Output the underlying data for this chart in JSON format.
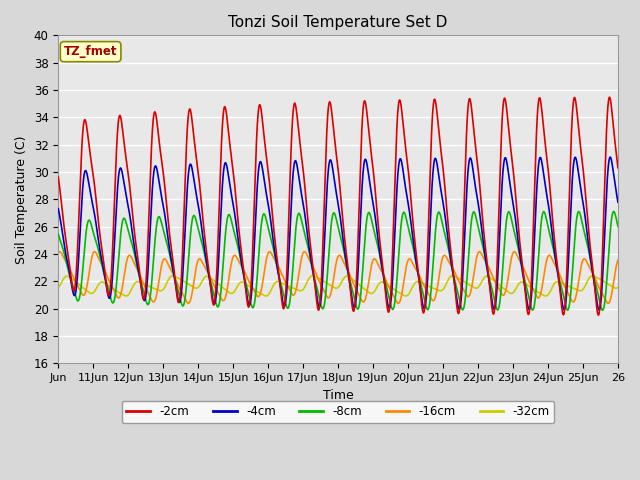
{
  "title": "Tonzi Soil Temperature Set D",
  "xlabel": "Time",
  "ylabel": "Soil Temperature (C)",
  "xlim": [
    0,
    16
  ],
  "ylim": [
    16,
    40
  ],
  "yticks": [
    16,
    18,
    20,
    22,
    24,
    26,
    28,
    30,
    32,
    34,
    36,
    38,
    40
  ],
  "xtick_labels": [
    "Jun",
    "11Jun",
    "12Jun",
    "13Jun",
    "14Jun",
    "15Jun",
    "16Jun",
    "17Jun",
    "18Jun",
    "19Jun",
    "20Jun",
    "21Jun",
    "22Jun",
    "23Jun",
    "24Jun",
    "25Jun",
    "26"
  ],
  "xtick_positions": [
    0,
    1,
    2,
    3,
    4,
    5,
    6,
    7,
    8,
    9,
    10,
    11,
    12,
    13,
    14,
    15,
    16
  ],
  "legend_label": "TZ_fmet",
  "series_labels": [
    "-2cm",
    "-4cm",
    "-8cm",
    "-16cm",
    "-32cm"
  ],
  "series_colors": [
    "#dd0000",
    "#0000cc",
    "#00bb00",
    "#ff8800",
    "#cccc00"
  ],
  "background_color": "#e8e8e8",
  "fig_background": "#d8d8d8",
  "grid_color": "#ffffff",
  "n_points": 2000
}
